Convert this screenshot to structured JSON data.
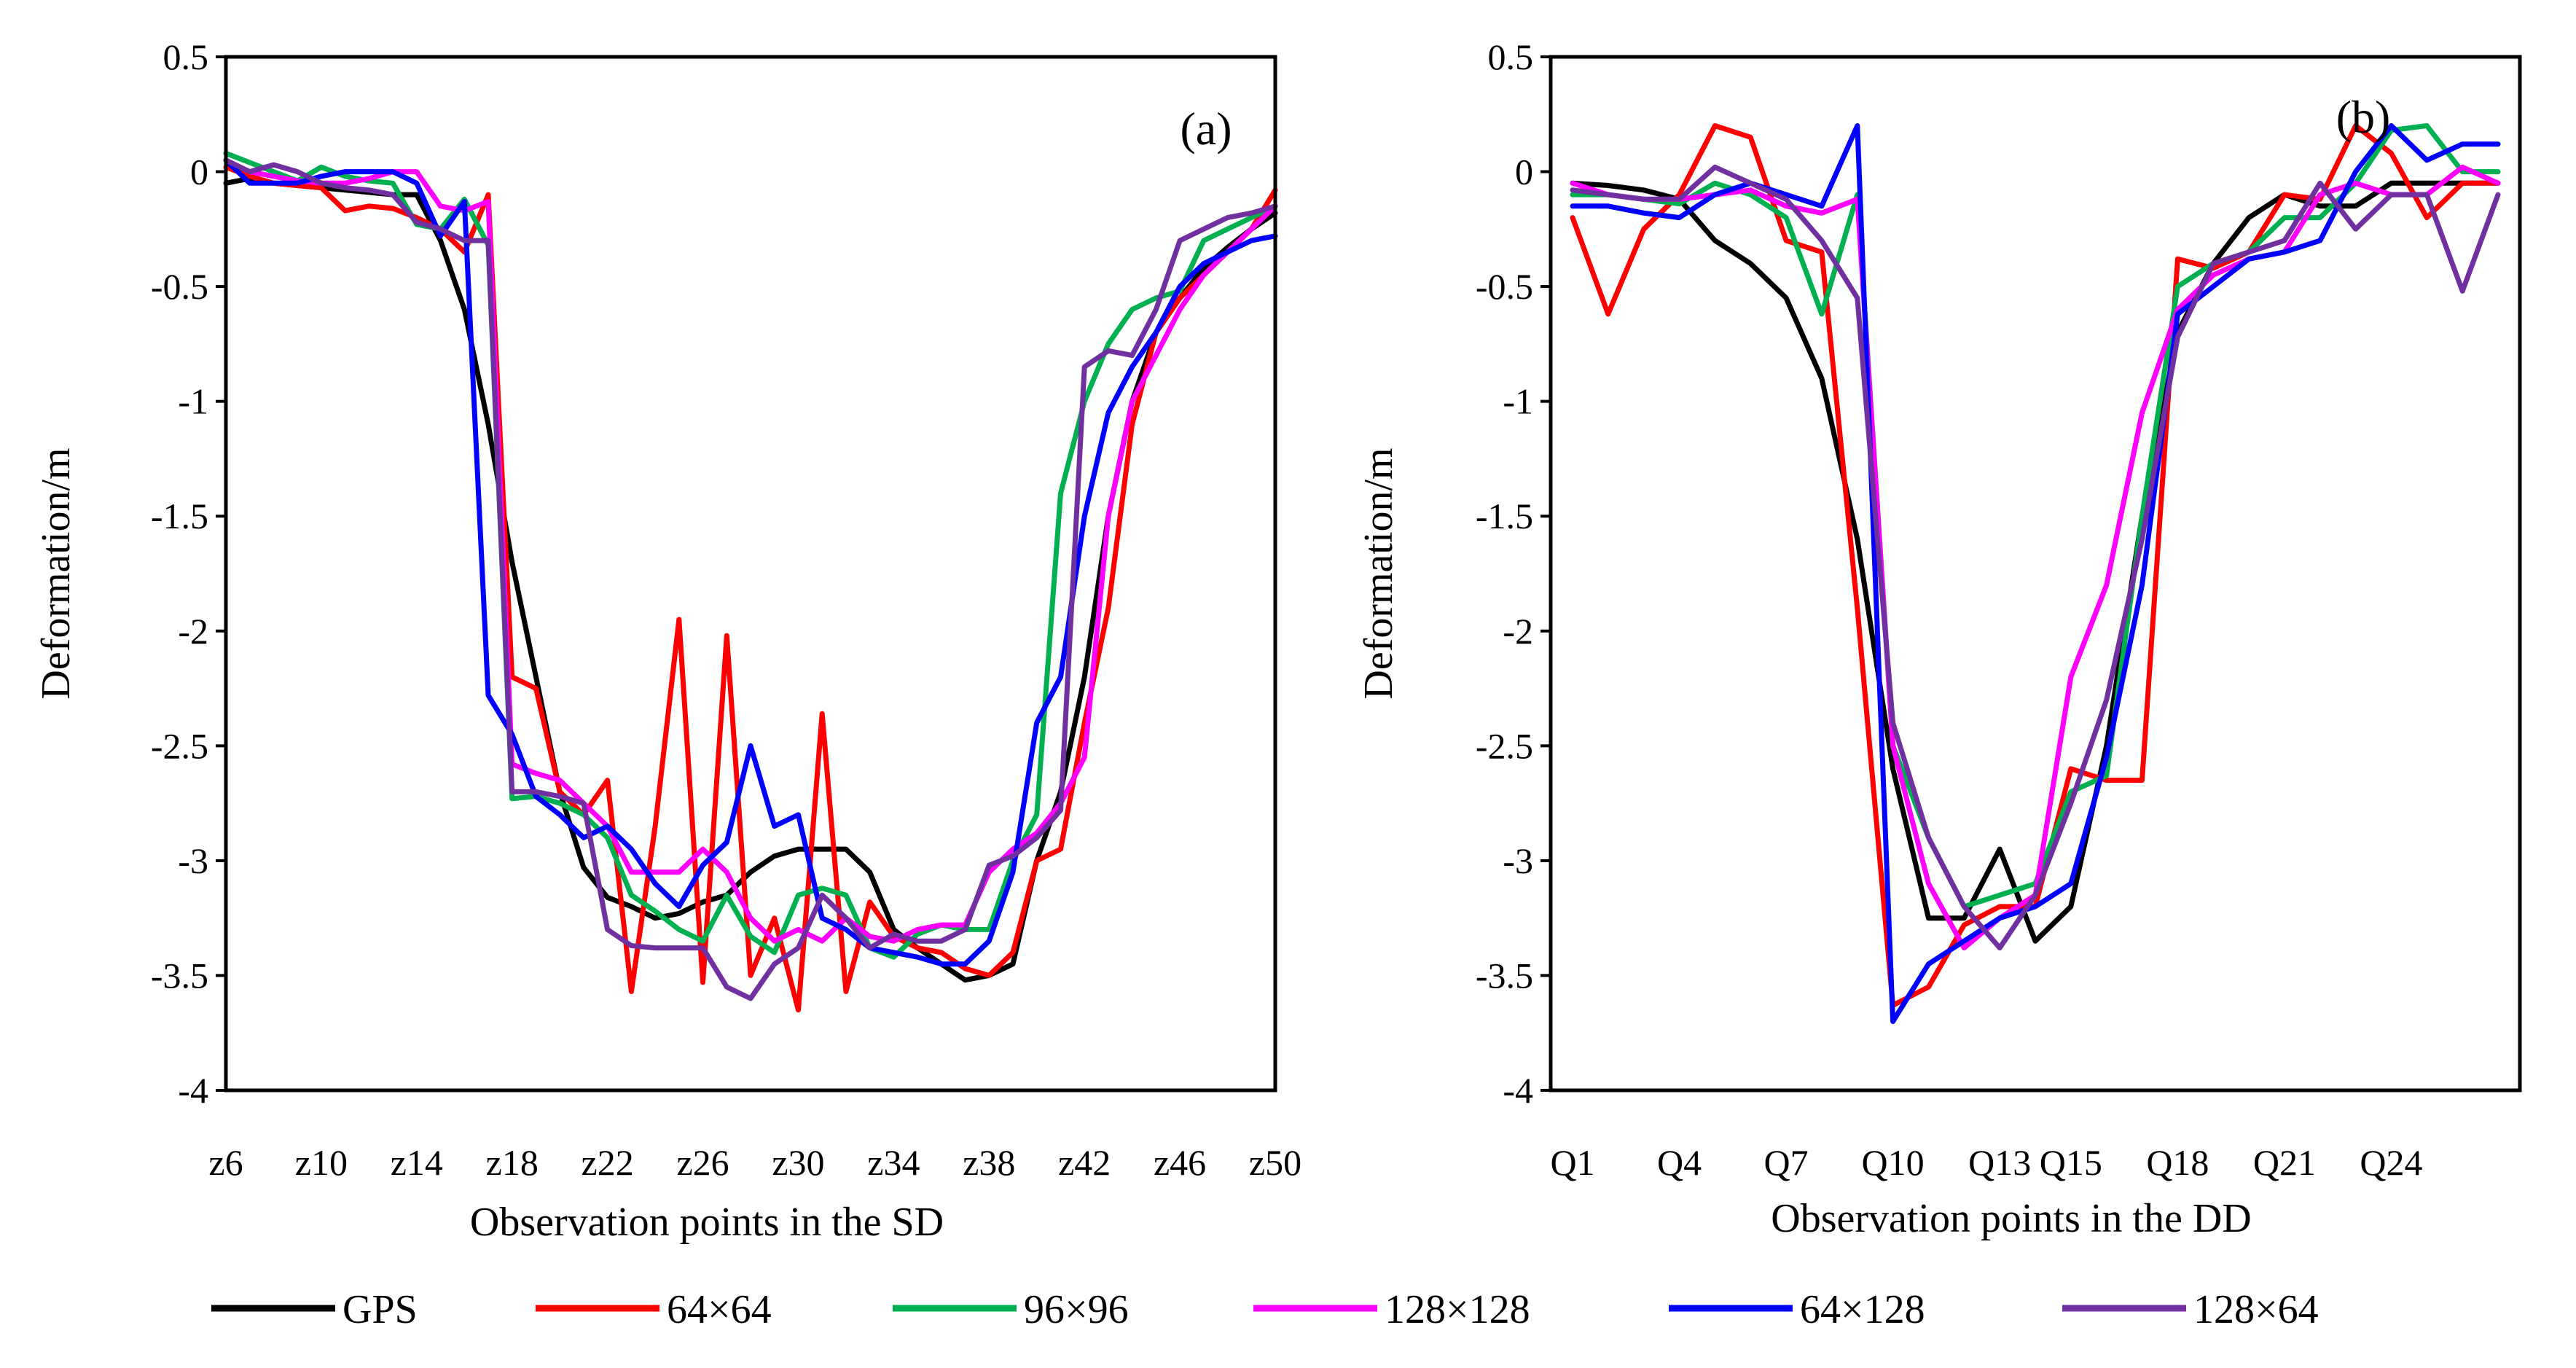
{
  "chart_data": [
    {
      "type": "line",
      "panel_label": "(a)",
      "title": "",
      "xlabel": "Observation points in the SD",
      "ylabel": "Deformation/m",
      "ylim": [
        -4,
        0.5
      ],
      "yticks": [
        0.5,
        0,
        -0.5,
        -1,
        -1.5,
        -2,
        -2.5,
        -3,
        -3.5,
        -4
      ],
      "ytick_labels": [
        "0.5",
        "0",
        "-0.5",
        "-1",
        "-1.5",
        "-2",
        "-2.5",
        "-3",
        "-3.5",
        "-4"
      ],
      "x": [
        "z6",
        "z7",
        "z8",
        "z9",
        "z10",
        "z11",
        "z12",
        "z13",
        "z14",
        "z15",
        "z16",
        "z17",
        "z18",
        "z19",
        "z20",
        "z21",
        "z22",
        "z23",
        "z24",
        "z25",
        "z26",
        "z27",
        "z28",
        "z29",
        "z30",
        "z31",
        "z32",
        "z33",
        "z34",
        "z35",
        "z36",
        "z37",
        "z38",
        "z39",
        "z40",
        "z41",
        "z42",
        "z43",
        "z44",
        "z45",
        "z46",
        "z47",
        "z48",
        "z49",
        "z50"
      ],
      "xtick_labels": [
        "z6",
        "z10",
        "z14",
        "z18",
        "z22",
        "z26",
        "z30",
        "z34",
        "z38",
        "z42",
        "z46",
        "z50"
      ],
      "series": [
        {
          "name": "GPS",
          "values": [
            -0.05,
            -0.03,
            -0.05,
            -0.06,
            -0.07,
            -0.08,
            -0.09,
            -0.1,
            -0.1,
            -0.3,
            -0.6,
            -1.1,
            -1.7,
            -2.2,
            -2.7,
            -3.03,
            -3.16,
            -3.2,
            -3.25,
            -3.23,
            -3.18,
            -3.15,
            -3.05,
            -2.98,
            -2.95,
            -2.95,
            -2.95,
            -3.05,
            -3.3,
            -3.38,
            -3.45,
            -3.52,
            -3.5,
            -3.45,
            -3.0,
            -2.7,
            -2.2,
            -1.5,
            -1.0,
            -0.7,
            -0.55,
            -0.42,
            -0.33,
            -0.25,
            -0.18
          ]
        },
        {
          "name": "64×64",
          "values": [
            0.02,
            -0.02,
            -0.05,
            -0.06,
            -0.07,
            -0.17,
            -0.15,
            -0.16,
            -0.2,
            -0.25,
            -0.35,
            -0.1,
            -2.2,
            -2.25,
            -2.7,
            -2.8,
            -2.65,
            -3.57,
            -2.85,
            -1.95,
            -3.53,
            -2.02,
            -3.5,
            -3.25,
            -3.65,
            -2.36,
            -3.57,
            -3.18,
            -3.33,
            -3.38,
            -3.4,
            -3.47,
            -3.5,
            -3.4,
            -3.0,
            -2.95,
            -2.4,
            -1.9,
            -1.1,
            -0.7,
            -0.55,
            -0.45,
            -0.35,
            -0.25,
            -0.08
          ]
        },
        {
          "name": "96×96",
          "values": [
            0.08,
            0.04,
            0.0,
            -0.04,
            0.02,
            -0.02,
            -0.04,
            -0.05,
            -0.23,
            -0.25,
            -0.12,
            -0.32,
            -2.73,
            -2.72,
            -2.75,
            -2.8,
            -2.9,
            -3.15,
            -3.22,
            -3.3,
            -3.35,
            -3.15,
            -3.33,
            -3.4,
            -3.15,
            -3.12,
            -3.15,
            -3.38,
            -3.42,
            -3.32,
            -3.28,
            -3.3,
            -3.3,
            -3.0,
            -2.8,
            -1.4,
            -1.0,
            -0.75,
            -0.6,
            -0.55,
            -0.52,
            -0.3,
            -0.25,
            -0.2,
            -0.15
          ]
        },
        {
          "name": "128×128",
          "values": [
            0.05,
            0.0,
            -0.02,
            -0.04,
            -0.05,
            -0.05,
            -0.03,
            0.0,
            0.0,
            -0.15,
            -0.17,
            -0.13,
            -2.58,
            -2.62,
            -2.65,
            -2.75,
            -2.85,
            -3.05,
            -3.05,
            -3.05,
            -2.95,
            -3.05,
            -3.25,
            -3.35,
            -3.3,
            -3.35,
            -3.25,
            -3.33,
            -3.35,
            -3.3,
            -3.28,
            -3.28,
            -3.05,
            -2.95,
            -2.88,
            -2.75,
            -2.55,
            -1.5,
            -1.0,
            -0.8,
            -0.6,
            -0.45,
            -0.35,
            -0.25,
            -0.15
          ]
        },
        {
          "name": "64×128",
          "values": [
            0.05,
            -0.05,
            -0.05,
            -0.05,
            -0.02,
            0.0,
            0.0,
            0.0,
            -0.05,
            -0.28,
            -0.13,
            -2.28,
            -2.45,
            -2.72,
            -2.8,
            -2.9,
            -2.85,
            -2.95,
            -3.1,
            -3.2,
            -3.02,
            -2.92,
            -2.5,
            -2.85,
            -2.8,
            -3.25,
            -3.3,
            -3.38,
            -3.4,
            -3.42,
            -3.45,
            -3.45,
            -3.35,
            -3.05,
            -2.4,
            -2.2,
            -1.5,
            -1.05,
            -0.85,
            -0.7,
            -0.5,
            -0.4,
            -0.35,
            -0.3,
            -0.28
          ]
        },
        {
          "name": "128×64",
          "values": [
            0.05,
            0.0,
            0.03,
            0.0,
            -0.05,
            -0.07,
            -0.08,
            -0.1,
            -0.22,
            -0.25,
            -0.3,
            -0.3,
            -2.7,
            -2.7,
            -2.72,
            -2.75,
            -3.3,
            -3.37,
            -3.38,
            -3.38,
            -3.38,
            -3.55,
            -3.6,
            -3.45,
            -3.38,
            -3.15,
            -3.25,
            -3.38,
            -3.32,
            -3.35,
            -3.35,
            -3.3,
            -3.02,
            -2.98,
            -2.9,
            -2.78,
            -0.85,
            -0.78,
            -0.8,
            -0.6,
            -0.3,
            -0.25,
            -0.2,
            -0.18,
            -0.15
          ]
        }
      ]
    },
    {
      "type": "line",
      "panel_label": "(b)",
      "title": "",
      "xlabel": "Observation points in the DD",
      "ylabel": "Deformation/m",
      "ylim": [
        -4,
        0.5
      ],
      "yticks": [
        0.5,
        0,
        -0.5,
        -1,
        -1.5,
        -2,
        -2.5,
        -3,
        -3.5,
        -4
      ],
      "ytick_labels": [
        "0.5",
        "0",
        "-0.5",
        "-1",
        "-1.5",
        "-2",
        "-2.5",
        "-3",
        "-3.5",
        "-4"
      ],
      "x": [
        "Q1",
        "Q2",
        "Q3",
        "Q4",
        "Q5",
        "Q6",
        "Q7",
        "Q8",
        "Q9",
        "Q10",
        "Q11",
        "Q12",
        "Q13",
        "Q14",
        "Q15",
        "Q16",
        "Q17",
        "Q18",
        "Q19",
        "Q20",
        "Q21",
        "Q22",
        "Q23",
        "Q24",
        "Q25",
        "Q26",
        "Q27"
      ],
      "xtick_labels": [
        "Q1",
        "Q4",
        "Q7",
        "Q10",
        "Q13",
        "Q15",
        "Q18",
        "Q21",
        "Q24"
      ],
      "series": [
        {
          "name": "GPS",
          "values": [
            -0.05,
            -0.06,
            -0.08,
            -0.12,
            -0.3,
            -0.4,
            -0.55,
            -0.9,
            -1.6,
            -2.6,
            -3.25,
            -3.25,
            -2.95,
            -3.35,
            -3.2,
            -2.5,
            -1.5,
            -0.7,
            -0.4,
            -0.2,
            -0.1,
            -0.15,
            -0.15,
            -0.05,
            -0.05,
            -0.05,
            -0.05
          ]
        },
        {
          "name": "64×64",
          "values": [
            -0.2,
            -0.62,
            -0.25,
            -0.1,
            0.2,
            0.15,
            -0.3,
            -0.35,
            -1.9,
            -3.63,
            -3.55,
            -3.28,
            -3.2,
            -3.2,
            -2.6,
            -2.65,
            -2.65,
            -0.38,
            -0.42,
            -0.35,
            -0.1,
            -0.12,
            0.2,
            0.08,
            -0.2,
            -0.05,
            -0.05
          ]
        },
        {
          "name": "96×96",
          "values": [
            -0.1,
            -0.1,
            -0.12,
            -0.14,
            -0.05,
            -0.1,
            -0.2,
            -0.62,
            -0.1,
            -2.5,
            -2.9,
            -3.2,
            -3.15,
            -3.1,
            -2.7,
            -2.63,
            -1.5,
            -0.5,
            -0.4,
            -0.35,
            -0.2,
            -0.2,
            -0.05,
            0.18,
            0.2,
            0.0,
            0.0
          ]
        },
        {
          "name": "128×128",
          "values": [
            -0.05,
            -0.1,
            -0.12,
            -0.12,
            -0.1,
            -0.08,
            -0.15,
            -0.18,
            -0.12,
            -2.5,
            -3.1,
            -3.38,
            -3.25,
            -3.15,
            -2.2,
            -1.8,
            -1.05,
            -0.6,
            -0.45,
            -0.38,
            -0.35,
            -0.1,
            -0.05,
            -0.1,
            -0.1,
            0.02,
            -0.05
          ]
        },
        {
          "name": "64×128",
          "values": [
            -0.15,
            -0.15,
            -0.18,
            -0.2,
            -0.1,
            -0.05,
            -0.1,
            -0.15,
            0.2,
            -3.7,
            -3.45,
            -3.35,
            -3.25,
            -3.2,
            -3.1,
            -2.55,
            -1.8,
            -0.62,
            -0.5,
            -0.38,
            -0.35,
            -0.3,
            0.0,
            0.2,
            0.05,
            0.12,
            0.12
          ]
        },
        {
          "name": "128×64",
          "values": [
            -0.08,
            -0.1,
            -0.12,
            -0.12,
            0.02,
            -0.05,
            -0.12,
            -0.3,
            -0.55,
            -2.4,
            -2.9,
            -3.2,
            -3.38,
            -3.15,
            -2.75,
            -2.3,
            -1.6,
            -0.72,
            -0.4,
            -0.35,
            -0.3,
            -0.05,
            -0.25,
            -0.1,
            -0.1,
            -0.52,
            -0.1
          ]
        }
      ]
    }
  ],
  "legend": {
    "placement": "bottom",
    "entries": [
      {
        "name": "GPS",
        "color": "#000000"
      },
      {
        "name": "64×64",
        "color": "#ff0000"
      },
      {
        "name": "96×96",
        "color": "#00b050"
      },
      {
        "name": "128×128",
        "color": "#ff00ff"
      },
      {
        "name": "64×128",
        "color": "#0000ff"
      },
      {
        "name": "128×64",
        "color": "#7030a0"
      }
    ]
  }
}
